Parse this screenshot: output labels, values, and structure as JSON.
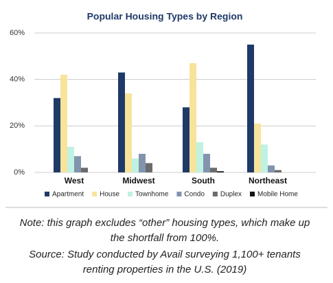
{
  "chart_data": {
    "type": "bar",
    "title": "Popular Housing Types by Region",
    "categories": [
      "West",
      "Midwest",
      "South",
      "Northeast"
    ],
    "series": [
      {
        "name": "Apartment",
        "color": "#1f3a68",
        "values": [
          32,
          43,
          28,
          55
        ]
      },
      {
        "name": "House",
        "color": "#f7e39a",
        "values": [
          42,
          34,
          47,
          21
        ]
      },
      {
        "name": "Townhome",
        "color": "#bff2e3",
        "values": [
          11,
          6,
          13,
          12
        ]
      },
      {
        "name": "Condo",
        "color": "#8294ad",
        "values": [
          7,
          8,
          8,
          3
        ]
      },
      {
        "name": "Duplex",
        "color": "#6b6b6b",
        "values": [
          2,
          4,
          2,
          1
        ]
      },
      {
        "name": "Mobile Home",
        "color": "#111111",
        "values": [
          0,
          0,
          0.5,
          0
        ]
      }
    ],
    "ylim": [
      0,
      60
    ],
    "yticks": [
      {
        "value": 0,
        "label": "0%"
      },
      {
        "value": 20,
        "label": "20%"
      },
      {
        "value": 40,
        "label": "40%"
      },
      {
        "value": 60,
        "label": "60%"
      }
    ],
    "grid": true,
    "legend": "bottom"
  },
  "caption": [
    "Note: this graph excludes “other” housing types, which make up",
    "the shortfall from 100%.",
    "Source: Study conducted by Avail surveying 1,100+ tenants",
    "renting properties in the U.S. (2019)"
  ]
}
